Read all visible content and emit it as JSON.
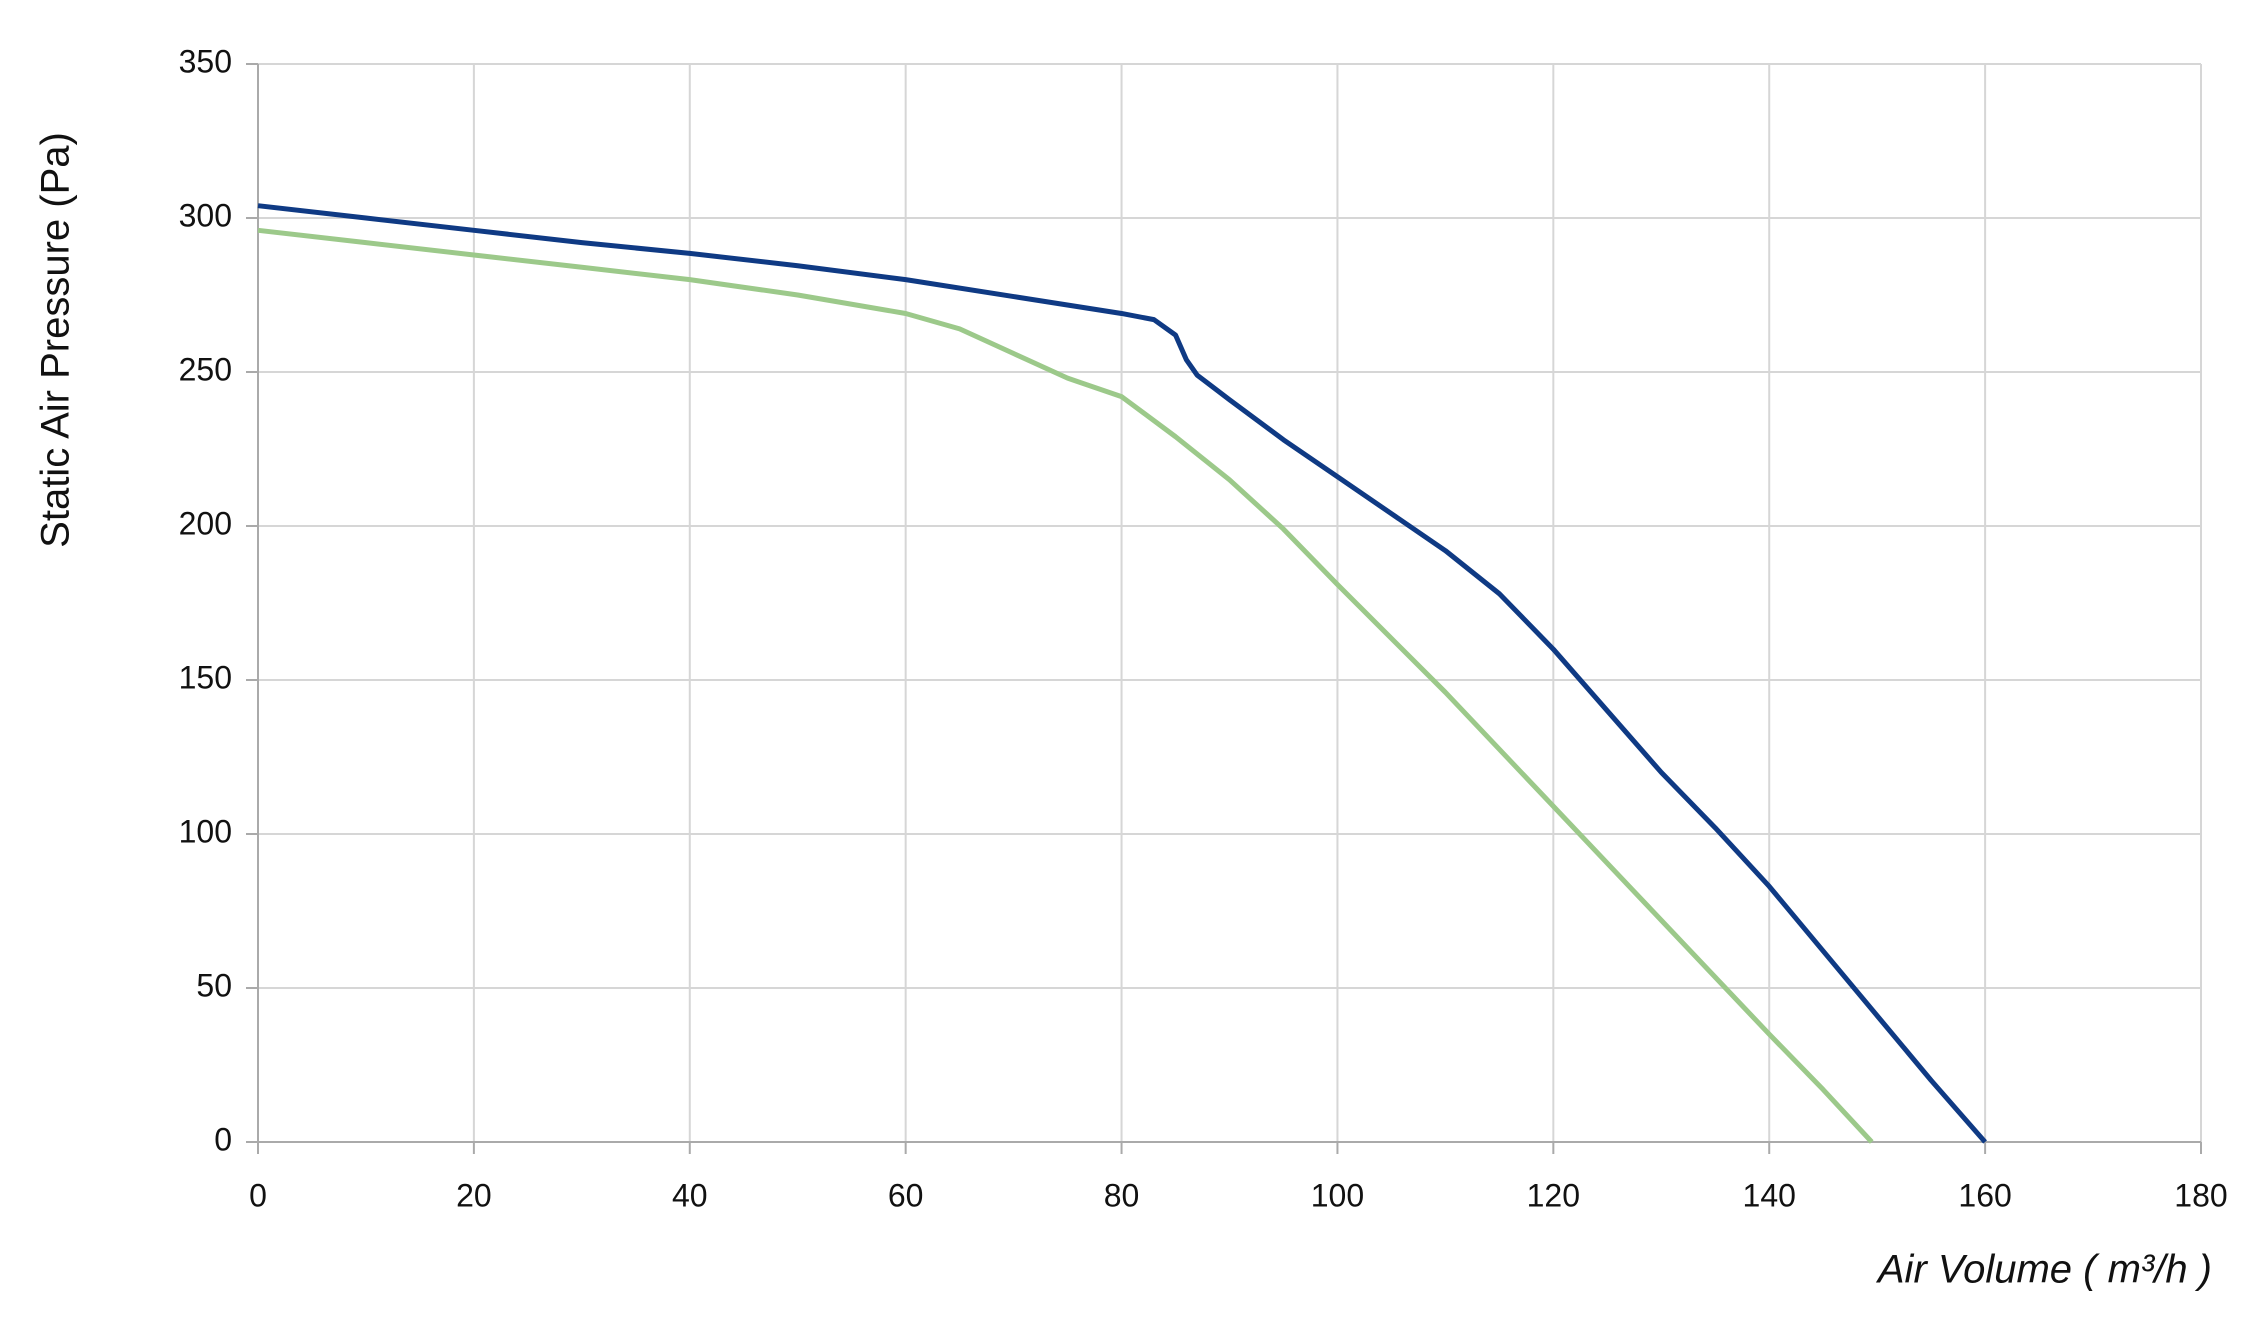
{
  "chart_data": {
    "type": "line",
    "y_label": "Static Air Pressure  (Pa)",
    "x_label": "Air Volume ( m³/h )",
    "xlim": [
      0,
      180
    ],
    "xticks": [
      0,
      20,
      40,
      60,
      80,
      100,
      120,
      140,
      160,
      180
    ],
    "ylim": [
      0,
      350
    ],
    "yticks": [
      0,
      50,
      100,
      150,
      200,
      250,
      300,
      350
    ],
    "grid": true,
    "series": [
      {
        "color": "#0f3a84",
        "x": [
          0,
          10,
          20,
          30,
          40,
          50,
          60,
          70,
          80,
          83,
          85,
          86,
          87,
          90,
          95,
          100,
          105,
          110,
          115,
          120,
          125,
          130,
          135,
          140,
          145,
          150,
          155,
          160
        ],
        "values": [
          304,
          300,
          296,
          292,
          288.5,
          284.5,
          280,
          274.5,
          269,
          267,
          262,
          254,
          249,
          241,
          228,
          216,
          204,
          192,
          178,
          160,
          140,
          120,
          102,
          83,
          62,
          41,
          20,
          0
        ]
      },
      {
        "color": "#9cc98a",
        "x": [
          0,
          10,
          20,
          30,
          40,
          50,
          60,
          65,
          70,
          75,
          80,
          85,
          90,
          95,
          100,
          110,
          120,
          130,
          140,
          145,
          149.5
        ],
        "values": [
          296,
          292,
          288,
          284,
          280,
          275,
          269,
          264,
          256,
          248,
          242,
          229,
          215,
          199,
          181,
          146,
          109,
          72,
          35,
          17,
          0
        ]
      }
    ]
  }
}
